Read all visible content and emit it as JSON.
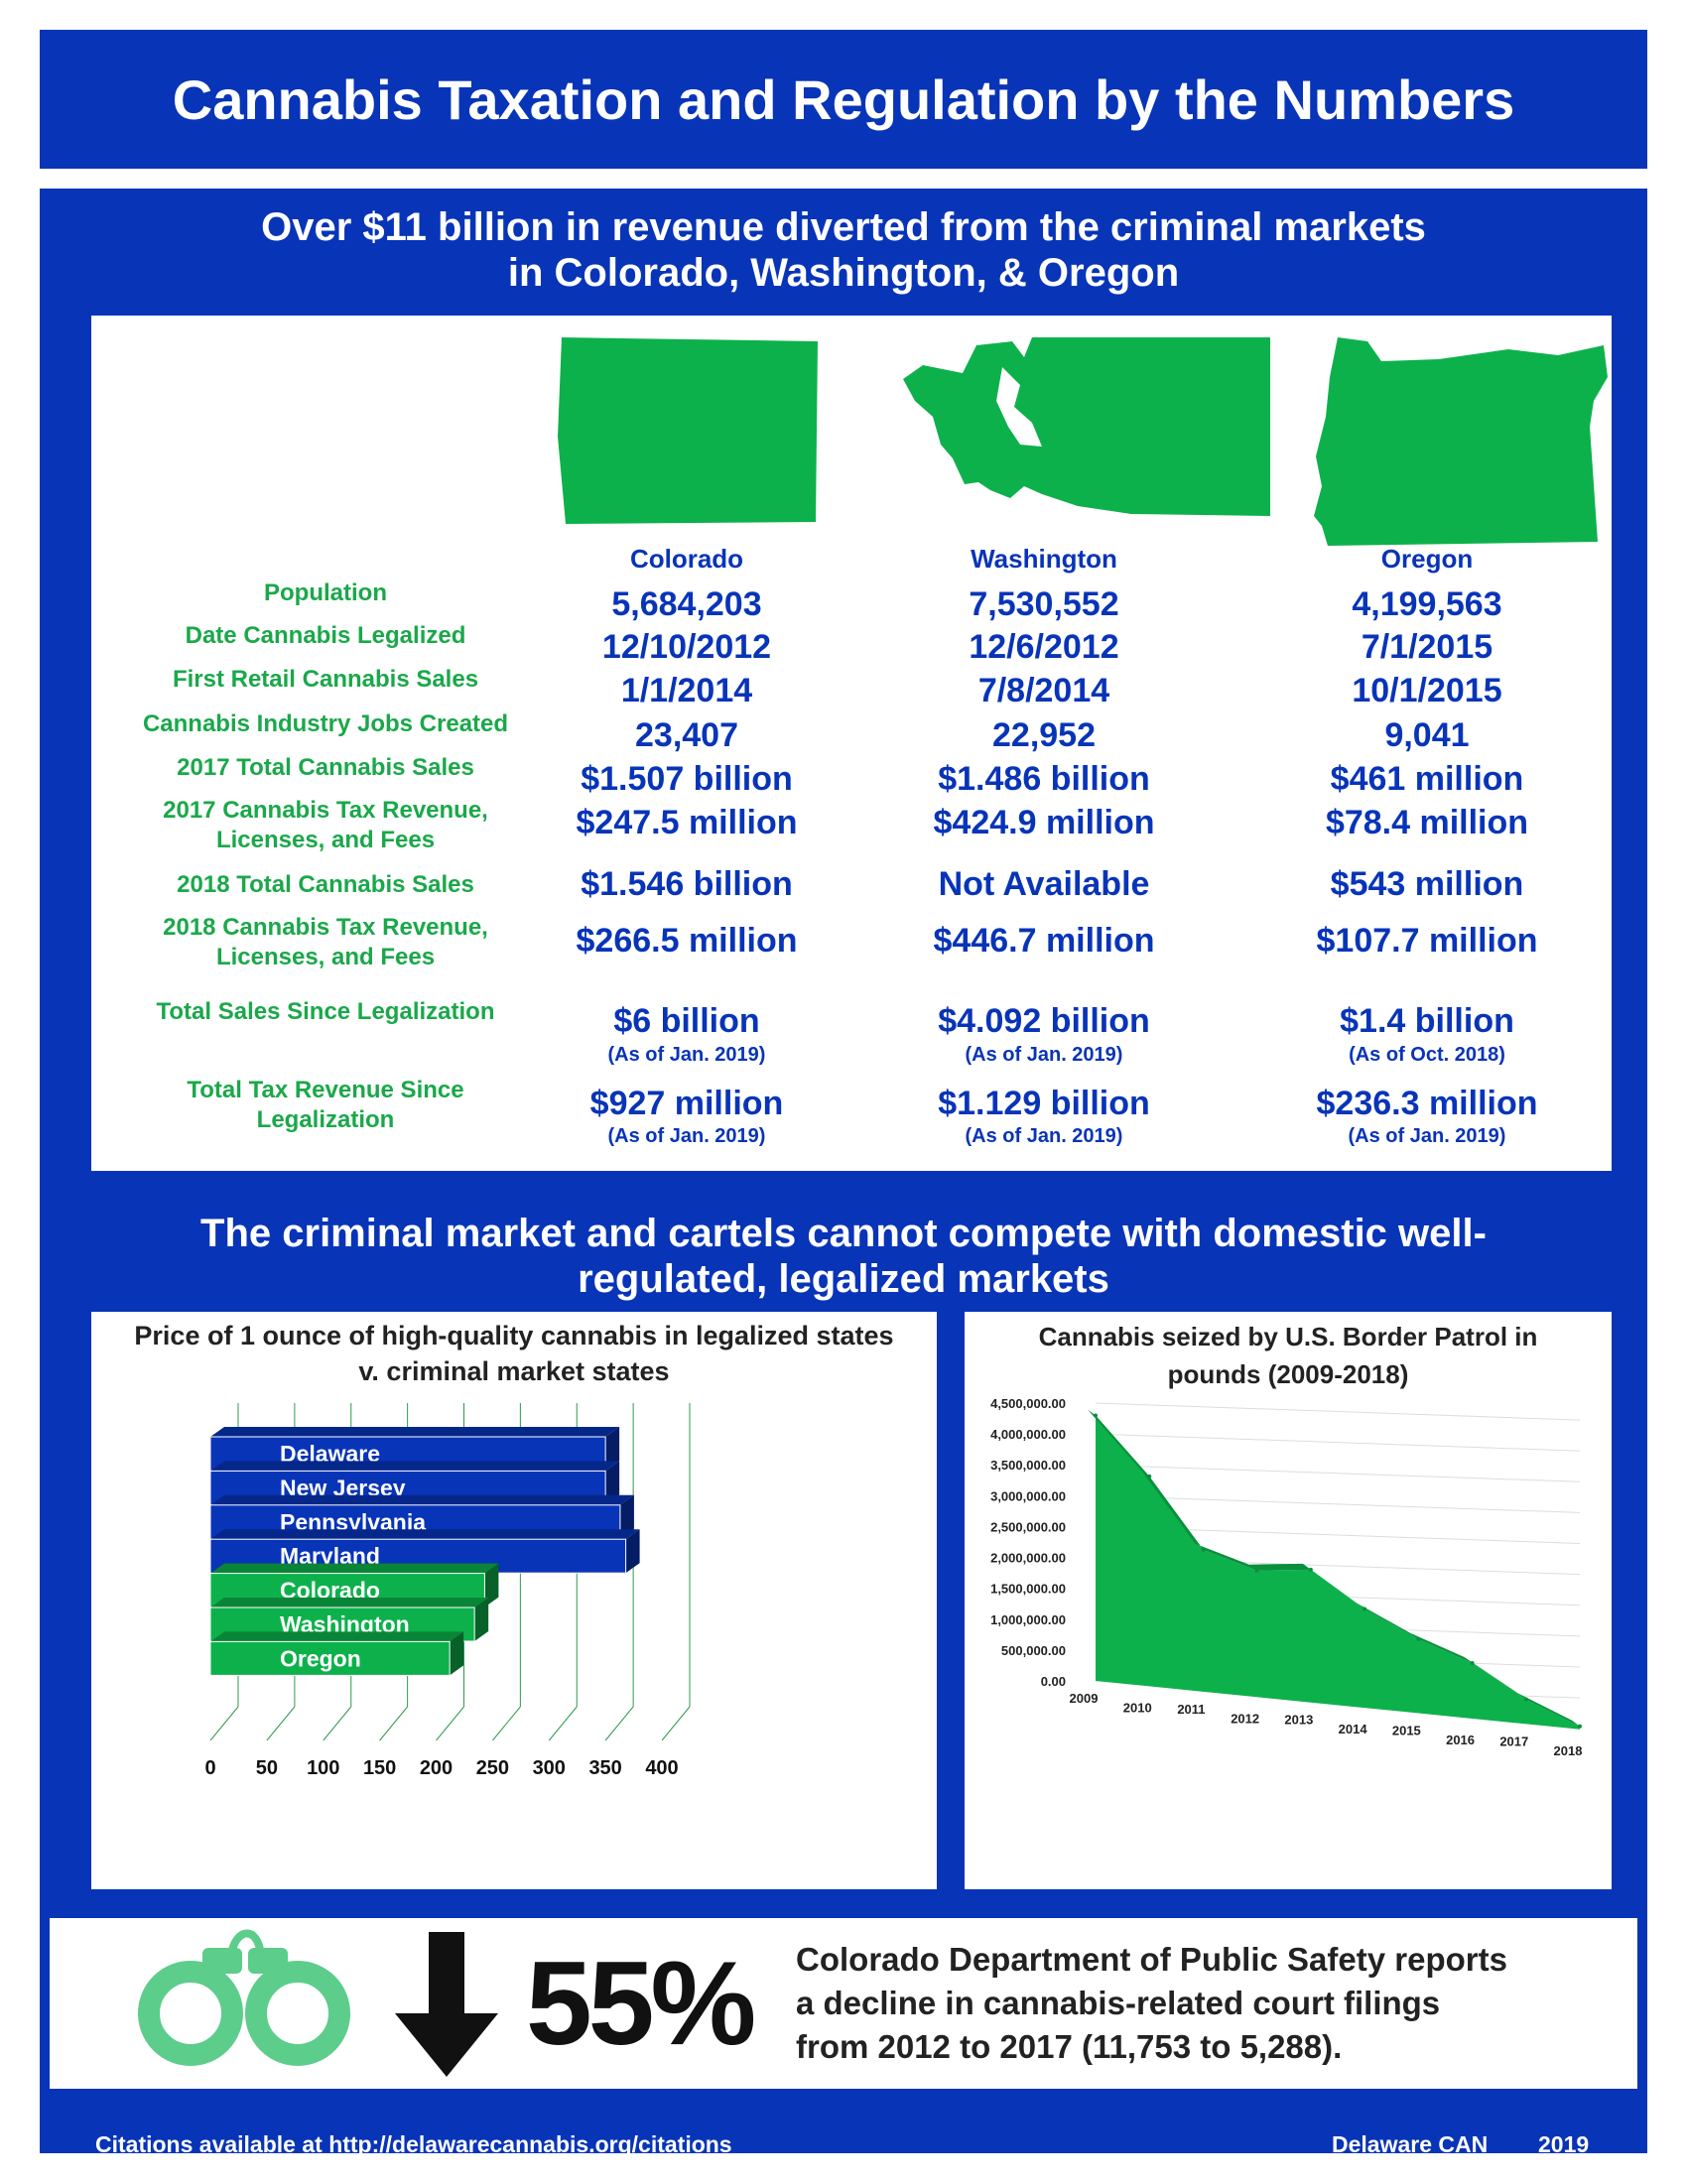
{
  "title": "Cannabis Taxation and Regulation by the Numbers",
  "section1": {
    "line1": "Over $11 billion in revenue diverted from the criminal markets",
    "line2": "in Colorado, Washington, & Oregon"
  },
  "states": [
    "Colorado",
    "Washington",
    "Oregon"
  ],
  "rows": [
    {
      "label": "Population",
      "values": [
        "5,684,203",
        "7,530,552",
        "4,199,563"
      ]
    },
    {
      "label": "Date Cannabis Legalized",
      "values": [
        "12/10/2012",
        "12/6/2012",
        "7/1/2015"
      ]
    },
    {
      "label": "First Retail Cannabis Sales",
      "values": [
        "1/1/2014",
        "7/8/2014",
        "10/1/2015"
      ]
    },
    {
      "label": "Cannabis Industry Jobs Created",
      "values": [
        "23,407",
        "22,952",
        "9,041"
      ]
    },
    {
      "label": "2017 Total Cannabis Sales",
      "values": [
        "$1.507 billion",
        "$1.486 billion",
        "$461 million"
      ]
    },
    {
      "label": "2017 Cannabis Tax Revenue,",
      "label2": "Licenses, and Fees",
      "values": [
        "$247.5 million",
        "$424.9 million",
        "$78.4 million"
      ]
    },
    {
      "label": "2018 Total Cannabis Sales",
      "values": [
        "$1.546 billion",
        "Not Available",
        "$543 million"
      ]
    },
    {
      "label": "2018 Cannabis Tax Revenue,",
      "label2": "Licenses, and Fees",
      "values": [
        "$266.5 million",
        "$446.7 million",
        "$107.7 million"
      ]
    },
    {
      "label": "Total Sales Since Legalization",
      "values": [
        "$6 billion",
        "$4.092 billion",
        "$1.4 billion"
      ],
      "notes": [
        "(As of Jan. 2019)",
        "(As of Jan. 2019)",
        "(As of Oct. 2018)"
      ]
    },
    {
      "label": "Total Tax Revenue Since",
      "label2": "Legalization",
      "values": [
        "$927 million",
        "$1.129 billion",
        "$236.3 million"
      ],
      "notes": [
        "(As of Jan. 2019)",
        "(As of Jan. 2019)",
        "(As of Jan. 2019)"
      ]
    }
  ],
  "section2": {
    "line1": "The criminal market and cartels cannot compete with domestic well-",
    "line2": "regulated, legalized markets"
  },
  "colors": {
    "blue": "#0834b8",
    "green": "#1aa84a",
    "chart_green": "#0db14b"
  },
  "chart_data": [
    {
      "type": "bar",
      "orientation": "horizontal",
      "title": "Price of 1 ounce of high-quality cannabis in legalized states v. criminal market states",
      "categories": [
        "Delaware",
        "New Jersey",
        "Pennsylvania",
        "Maryland",
        "Colorado",
        "Washington",
        "Oregon"
      ],
      "values": [
        350,
        350,
        363,
        368,
        243,
        234,
        212
      ],
      "bar_colors": [
        "#0834b8",
        "#0834b8",
        "#0834b8",
        "#0834b8",
        "#0db14b",
        "#0db14b",
        "#0db14b"
      ],
      "xticks": [
        "0",
        "50",
        "100",
        "150",
        "200",
        "250",
        "300",
        "350",
        "400"
      ],
      "xlim": [
        0,
        400
      ]
    },
    {
      "type": "area",
      "title": "Cannabis seized by U.S. Border Patrol in pounds (2009-2018)",
      "x": [
        "2009",
        "2010",
        "2011",
        "2012",
        "2013",
        "2014",
        "2015",
        "2016",
        "2017",
        "2018"
      ],
      "values": [
        4300000,
        3400000,
        2300000,
        2050000,
        2150000,
        1600000,
        1200000,
        900000,
        400000,
        50000
      ],
      "yticks": [
        "4,500,000.00",
        "4,000,000.00",
        "3,500,000.00",
        "3,000,000.00",
        "2,500,000.00",
        "2,000,000.00",
        "1,500,000.00",
        "1,000,000.00",
        "500,000.00",
        "0.00"
      ],
      "ylim": [
        0,
        4500000
      ]
    }
  ],
  "bottom": {
    "percent": "55%",
    "line1": "Colorado Department of Public Safety reports",
    "line2": "a decline in cannabis-related court filings",
    "line3": "from 2012 to 2017 (11,753 to 5,288)."
  },
  "footer": {
    "citations": "Citations available at http://delawarecannabis.org/citations",
    "org": "Delaware CAN",
    "year": "2019"
  }
}
